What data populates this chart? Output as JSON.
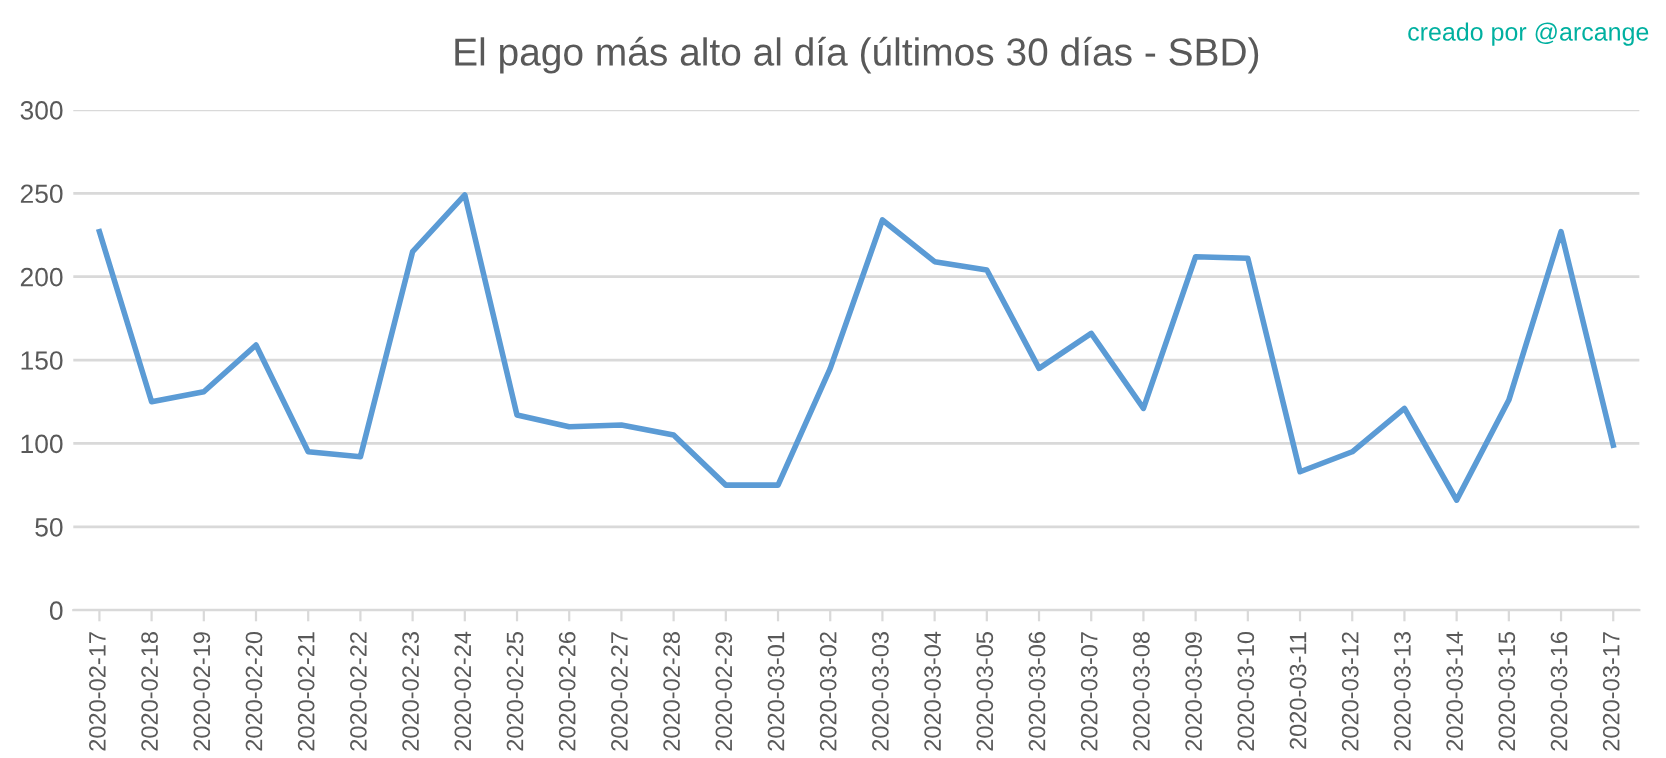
{
  "chart_data": {
    "type": "line",
    "title": "El pago más alto al día (últimos 30 días - SBD)",
    "annotations": [
      "creado por @arcange"
    ],
    "categories": [
      "2020-02-17",
      "2020-02-18",
      "2020-02-19",
      "2020-02-20",
      "2020-02-21",
      "2020-02-22",
      "2020-02-23",
      "2020-02-24",
      "2020-02-25",
      "2020-02-26",
      "2020-02-27",
      "2020-02-28",
      "2020-02-29",
      "2020-03-01",
      "2020-03-02",
      "2020-03-03",
      "2020-03-04",
      "2020-03-05",
      "2020-03-06",
      "2020-03-07",
      "2020-03-08",
      "2020-03-09",
      "2020-03-10",
      "2020-03-11",
      "2020-03-12",
      "2020-03-13",
      "2020-03-14",
      "2020-03-15",
      "2020-03-16",
      "2020-03-17"
    ],
    "series": [
      {
        "color": "#5b9bd5",
        "values": [
          227,
          125,
          131,
          159,
          95,
          92,
          215,
          249,
          117,
          110,
          111,
          105,
          75,
          75,
          145,
          234,
          209,
          204,
          145,
          166,
          121,
          212,
          211,
          83,
          95,
          121,
          66,
          126,
          227,
          99
        ]
      }
    ],
    "ylim": [
      0,
      300
    ],
    "yticks": [
      0,
      50,
      100,
      150,
      200,
      250,
      300
    ],
    "grid": "y"
  }
}
